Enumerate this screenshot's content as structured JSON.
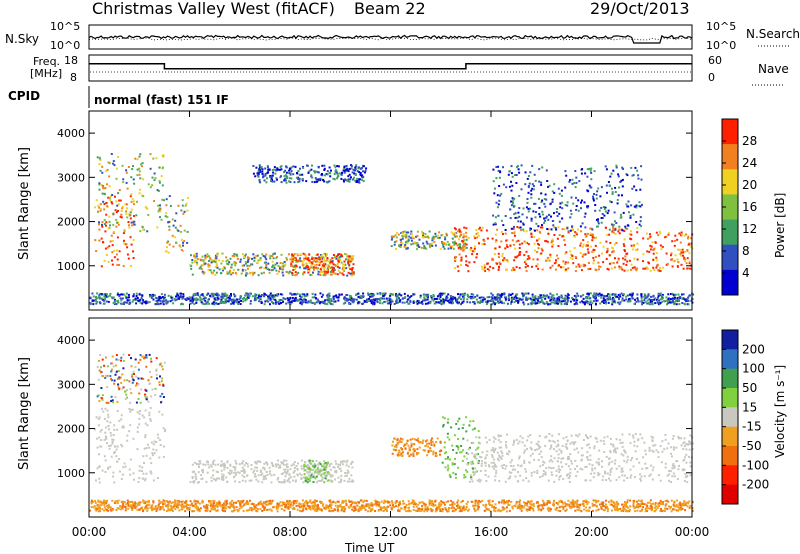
{
  "header": {
    "title": "Christmas Valley West (fitACF)",
    "beam": "Beam 22",
    "date": "29/Oct/2013"
  },
  "sky_panel": {
    "left_label": "N.Sky",
    "right_label": "N.Search",
    "left_ticks": [
      "10^5",
      "10^0"
    ],
    "right_ticks": [
      "10^5",
      "10^0"
    ]
  },
  "freq_panel": {
    "left_label_1": "Freq.",
    "left_label_2": "[MHz]",
    "right_label": "Nave",
    "left_ticks": [
      "18",
      "8"
    ],
    "right_ticks": [
      "60",
      "0"
    ],
    "cpid_label": "CPID",
    "mode_text": "normal (fast) 151 IF"
  },
  "time_axis": {
    "label": "Time UT",
    "ticks": [
      "00:00",
      "04:00",
      "08:00",
      "12:00",
      "16:00",
      "20:00",
      "00:00"
    ]
  },
  "range_axis": {
    "label": "Slant Range [km]",
    "ticks": [
      "1000",
      "2000",
      "3000",
      "4000"
    ]
  },
  "power_bar": {
    "label": "Power [dB]",
    "ticks": [
      "4",
      "8",
      "12",
      "16",
      "20",
      "24",
      "28"
    ],
    "colors": [
      "#0000d0",
      "#3050c0",
      "#40a060",
      "#80c040",
      "#f0d020",
      "#f08020",
      "#ff2000"
    ]
  },
  "velocity_bar": {
    "label": "Velocity [m s⁻¹]",
    "ticks": [
      "200",
      "100",
      "50",
      "15",
      "-15",
      "-50",
      "-100",
      "-200"
    ],
    "colors": [
      "#1020a0",
      "#3070c0",
      "#40a050",
      "#80d040",
      "#c8c8c0",
      "#f0a020",
      "#f07010",
      "#ff2000",
      "#e00000"
    ]
  },
  "chart_data": {
    "type": "heatmap",
    "x_range_hours": [
      0,
      24
    ],
    "y_range_km": [
      0,
      4500
    ],
    "power_regions": [
      {
        "t0": 0.2,
        "t1": 1.8,
        "r0": 1000,
        "r1": 2600,
        "level": "high"
      },
      {
        "t0": 0.3,
        "t1": 3.0,
        "r0": 1800,
        "r1": 3600,
        "level": "mid"
      },
      {
        "t0": 3.0,
        "t1": 3.9,
        "r0": 1300,
        "r1": 2600,
        "level": "mid"
      },
      {
        "t0": 4.0,
        "t1": 10.5,
        "r0": 800,
        "r1": 1300,
        "level": "mid"
      },
      {
        "t0": 8.0,
        "t1": 10.5,
        "r0": 800,
        "r1": 1300,
        "level": "high"
      },
      {
        "t0": 6.5,
        "t1": 11.0,
        "r0": 2900,
        "r1": 3300,
        "level": "low"
      },
      {
        "t0": 12.0,
        "t1": 15.0,
        "r0": 1400,
        "r1": 1800,
        "level": "mid"
      },
      {
        "t0": 14.5,
        "t1": 21.8,
        "r0": 900,
        "r1": 1900,
        "level": "high"
      },
      {
        "t0": 22.0,
        "t1": 24.0,
        "r0": 900,
        "r1": 1800,
        "level": "high"
      },
      {
        "t0": 16.0,
        "t1": 22.0,
        "r0": 1800,
        "r1": 3300,
        "level": "low"
      },
      {
        "t0": 0.0,
        "t1": 24.0,
        "r0": 150,
        "r1": 400,
        "level": "low"
      }
    ],
    "velocity_regions": [
      {
        "t0": 0.2,
        "t1": 3.0,
        "r0": 800,
        "r1": 2500,
        "class": "-15..15"
      },
      {
        "t0": 0.3,
        "t1": 3.0,
        "r0": 2600,
        "r1": 3700,
        "class": "mixed"
      },
      {
        "t0": 4.0,
        "t1": 10.5,
        "r0": 800,
        "r1": 1300,
        "class": "-15..15"
      },
      {
        "t0": 8.5,
        "t1": 9.5,
        "r0": 800,
        "r1": 1300,
        "class": "15..50"
      },
      {
        "t0": 12.0,
        "t1": 14.0,
        "r0": 1400,
        "r1": 1800,
        "class": "-50..-15"
      },
      {
        "t0": 14.0,
        "t1": 15.5,
        "r0": 900,
        "r1": 2300,
        "class": "15..50"
      },
      {
        "t0": 15.0,
        "t1": 24.0,
        "r0": 800,
        "r1": 1900,
        "class": "-15..15"
      },
      {
        "t0": 0.0,
        "t1": 24.0,
        "r0": 150,
        "r1": 400,
        "class": "-50..-15"
      }
    ],
    "frequency_mhz": [
      {
        "t0": 0,
        "t1": 3.0,
        "value": 17
      },
      {
        "t0": 3.0,
        "t1": 15.0,
        "value": 14
      },
      {
        "t0": 15.0,
        "t1": 24.0,
        "value": 17
      }
    ]
  }
}
